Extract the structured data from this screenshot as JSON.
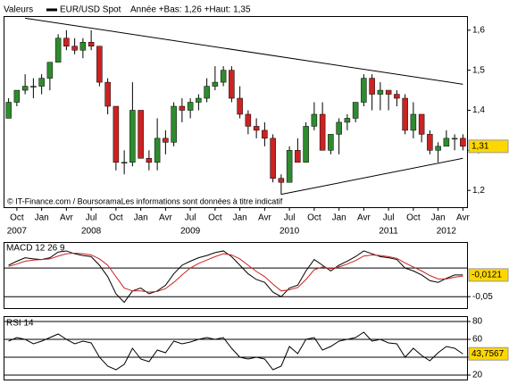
{
  "chart_data": [
    {
      "type": "candlestick",
      "title": "Valeurs",
      "series_name": "EUR/USD Spot",
      "subtitle": "Année +Bas: 1,26 +Haut: 1,35",
      "note": "© IT-Finance.com / BoursoramaLes informations sont données à titre indicatif",
      "dates": [
        "2007-09",
        "2007-10",
        "2007-11",
        "2007-12",
        "2008-01",
        "2008-02",
        "2008-03",
        "2008-04",
        "2008-05",
        "2008-06",
        "2008-07",
        "2008-08",
        "2008-09",
        "2008-10",
        "2008-11",
        "2008-12",
        "2009-01",
        "2009-02",
        "2009-03",
        "2009-04",
        "2009-05",
        "2009-06",
        "2009-07",
        "2009-08",
        "2009-09",
        "2009-10",
        "2009-11",
        "2009-12",
        "2010-01",
        "2010-02",
        "2010-03",
        "2010-04",
        "2010-05",
        "2010-06",
        "2010-07",
        "2010-08",
        "2010-09",
        "2010-10",
        "2010-11",
        "2010-12",
        "2011-01",
        "2011-02",
        "2011-03",
        "2011-04",
        "2011-05",
        "2011-06",
        "2011-07",
        "2011-08",
        "2011-09",
        "2011-10",
        "2011-11",
        "2011-12",
        "2012-01",
        "2012-02",
        "2012-03",
        "2012-04"
      ],
      "open": [
        1.38,
        1.42,
        1.45,
        1.46,
        1.46,
        1.48,
        1.52,
        1.58,
        1.56,
        1.55,
        1.57,
        1.56,
        1.47,
        1.41,
        1.27,
        1.27,
        1.4,
        1.28,
        1.27,
        1.33,
        1.32,
        1.41,
        1.4,
        1.42,
        1.43,
        1.46,
        1.47,
        1.5,
        1.43,
        1.39,
        1.36,
        1.35,
        1.33,
        1.23,
        1.22,
        1.3,
        1.27,
        1.36,
        1.39,
        1.3,
        1.34,
        1.37,
        1.38,
        1.42,
        1.48,
        1.44,
        1.45,
        1.44,
        1.43,
        1.35,
        1.39,
        1.34,
        1.3,
        1.31,
        1.33,
        1.33
      ],
      "high": [
        1.43,
        1.45,
        1.49,
        1.48,
        1.49,
        1.52,
        1.59,
        1.6,
        1.58,
        1.58,
        1.6,
        1.56,
        1.48,
        1.41,
        1.3,
        1.47,
        1.4,
        1.3,
        1.38,
        1.35,
        1.42,
        1.43,
        1.43,
        1.44,
        1.48,
        1.51,
        1.51,
        1.51,
        1.46,
        1.4,
        1.38,
        1.37,
        1.34,
        1.24,
        1.31,
        1.33,
        1.37,
        1.42,
        1.42,
        1.34,
        1.38,
        1.39,
        1.42,
        1.49,
        1.49,
        1.47,
        1.45,
        1.45,
        1.44,
        1.42,
        1.39,
        1.35,
        1.32,
        1.35,
        1.34,
        1.34
      ],
      "low": [
        1.38,
        1.41,
        1.44,
        1.43,
        1.44,
        1.45,
        1.52,
        1.55,
        1.54,
        1.53,
        1.55,
        1.46,
        1.39,
        1.25,
        1.24,
        1.26,
        1.28,
        1.25,
        1.25,
        1.29,
        1.31,
        1.37,
        1.38,
        1.4,
        1.42,
        1.45,
        1.46,
        1.42,
        1.38,
        1.34,
        1.33,
        1.31,
        1.22,
        1.19,
        1.22,
        1.27,
        1.27,
        1.35,
        1.3,
        1.29,
        1.29,
        1.35,
        1.37,
        1.41,
        1.4,
        1.4,
        1.4,
        1.41,
        1.34,
        1.33,
        1.32,
        1.29,
        1.27,
        1.31,
        1.3,
        1.3
      ],
      "close": [
        1.42,
        1.45,
        1.46,
        1.46,
        1.48,
        1.52,
        1.58,
        1.56,
        1.55,
        1.57,
        1.56,
        1.47,
        1.41,
        1.27,
        1.27,
        1.4,
        1.28,
        1.27,
        1.33,
        1.32,
        1.41,
        1.4,
        1.42,
        1.43,
        1.46,
        1.47,
        1.5,
        1.43,
        1.39,
        1.36,
        1.35,
        1.33,
        1.23,
        1.22,
        1.3,
        1.27,
        1.36,
        1.39,
        1.3,
        1.34,
        1.37,
        1.38,
        1.42,
        1.48,
        1.44,
        1.45,
        1.44,
        1.43,
        1.35,
        1.39,
        1.34,
        1.3,
        1.31,
        1.33,
        1.33,
        1.31
      ],
      "last_label": "1,31",
      "up_color": "#2e8b2e",
      "down_color": "#cc2222",
      "ylim": [
        1.158,
        1.633
      ],
      "yticks": [
        {
          "value": 1.2,
          "label": "1,2"
        },
        {
          "value": 1.3,
          "label": "1,3"
        },
        {
          "value": 1.4,
          "label": "1,4"
        },
        {
          "value": 1.5,
          "label": "1,5"
        },
        {
          "value": 1.6,
          "label": "1,6"
        }
      ],
      "xticks": [
        {
          "value": "2007-10",
          "label": "Oct"
        },
        {
          "value": "2008-01",
          "label": "Jan"
        },
        {
          "value": "2008-04",
          "label": "Avr"
        },
        {
          "value": "2008-07",
          "label": "Jul"
        },
        {
          "value": "2008-10",
          "label": "Oct"
        },
        {
          "value": "2009-01",
          "label": "Jan"
        },
        {
          "value": "2009-04",
          "label": "Avr"
        },
        {
          "value": "2009-07",
          "label": "Jul"
        },
        {
          "value": "2009-10",
          "label": "Oct"
        },
        {
          "value": "2010-01",
          "label": "Jan"
        },
        {
          "value": "2010-04",
          "label": "Avr"
        },
        {
          "value": "2010-07",
          "label": "Jul"
        },
        {
          "value": "2010-10",
          "label": "Oct"
        },
        {
          "value": "2011-01",
          "label": "Jan"
        },
        {
          "value": "2011-04",
          "label": "Avr"
        },
        {
          "value": "2011-07",
          "label": "Jul"
        },
        {
          "value": "2011-10",
          "label": "Oct"
        },
        {
          "value": "2012-01",
          "label": "Jan"
        },
        {
          "value": "2012-04",
          "label": "Avr"
        }
      ],
      "year_ticks": [
        {
          "value": "2007-10",
          "label": "2007"
        },
        {
          "value": "2008-07",
          "label": "2008"
        },
        {
          "value": "2009-07",
          "label": "2009"
        },
        {
          "value": "2010-07",
          "label": "2010"
        },
        {
          "value": "2011-07",
          "label": "2011"
        },
        {
          "value": "2012-02",
          "label": "2012"
        }
      ],
      "trendlines": [
        {
          "start_date": "2007-11",
          "start": 1.63,
          "end_date": "2012-04",
          "end": 1.465
        },
        {
          "start_date": "2010-06",
          "start": 1.19,
          "end_date": "2012-04",
          "end": 1.28
        }
      ]
    },
    {
      "type": "line",
      "title": "MACD 12 26 9",
      "series": [
        {
          "color": "#000000",
          "values": [
            0.005,
            0.012,
            0.018,
            0.016,
            0.015,
            0.018,
            0.028,
            0.03,
            0.025,
            0.022,
            0.02,
            0.005,
            -0.015,
            -0.045,
            -0.06,
            -0.04,
            -0.035,
            -0.045,
            -0.04,
            -0.03,
            -0.01,
            0.005,
            0.012,
            0.018,
            0.022,
            0.027,
            0.03,
            0.02,
            0.005,
            -0.01,
            -0.02,
            -0.025,
            -0.042,
            -0.05,
            -0.035,
            -0.03,
            -0.005,
            0.015,
            0.005,
            -0.005,
            0.005,
            0.012,
            0.02,
            0.03,
            0.025,
            0.02,
            0.018,
            0.015,
            0.0,
            -0.005,
            -0.012,
            -0.022,
            -0.025,
            -0.018,
            -0.012,
            -0.0121
          ]
        },
        {
          "color": "#cc2222",
          "values": [
            0.003,
            0.007,
            0.012,
            0.014,
            0.015,
            0.016,
            0.021,
            0.025,
            0.026,
            0.025,
            0.023,
            0.016,
            0.005,
            -0.015,
            -0.035,
            -0.04,
            -0.04,
            -0.042,
            -0.041,
            -0.036,
            -0.025,
            -0.012,
            0.0,
            0.008,
            0.014,
            0.02,
            0.025,
            0.023,
            0.016,
            0.005,
            -0.006,
            -0.015,
            -0.028,
            -0.04,
            -0.038,
            -0.034,
            -0.02,
            -0.003,
            0.002,
            -0.001,
            0.002,
            0.007,
            0.013,
            0.021,
            0.023,
            0.022,
            0.02,
            0.017,
            0.009,
            0.002,
            -0.005,
            -0.013,
            -0.019,
            -0.019,
            -0.016,
            -0.014
          ]
        }
      ],
      "last_label": "-0,0121",
      "ylim": [
        -0.07,
        0.044
      ],
      "yticks": [
        {
          "value": -0.05,
          "label": "-0,05"
        }
      ]
    },
    {
      "type": "line",
      "title": "RSI 14",
      "series": [
        {
          "color": "#000000",
          "values": [
            58,
            62,
            60,
            55,
            58,
            62,
            66,
            60,
            55,
            58,
            56,
            40,
            30,
            26,
            32,
            50,
            38,
            35,
            48,
            45,
            58,
            55,
            57,
            60,
            62,
            60,
            62,
            50,
            40,
            38,
            40,
            38,
            26,
            30,
            52,
            44,
            60,
            62,
            48,
            52,
            58,
            60,
            62,
            68,
            58,
            60,
            56,
            55,
            40,
            50,
            42,
            36,
            45,
            52,
            50,
            43.7567
          ]
        }
      ],
      "last_label": "43,7567",
      "ylim": [
        15,
        85
      ],
      "yticks": [
        20,
        40,
        60,
        80
      ]
    }
  ]
}
